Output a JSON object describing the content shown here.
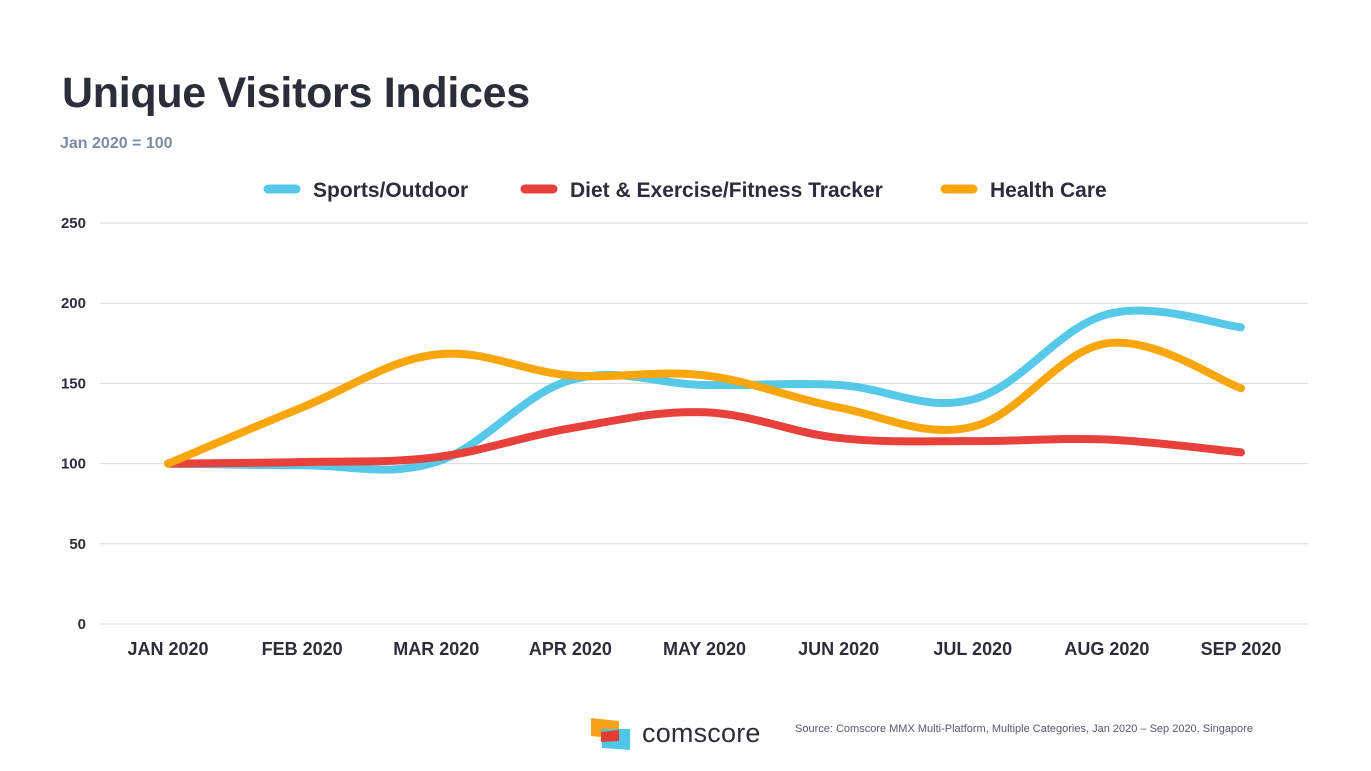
{
  "title": "Unique Visitors Indices",
  "subtitle": "Jan 2020 = 100",
  "footer": {
    "brand": "comscore",
    "logo_icon": "comscore-logo-icon",
    "source": "Source: Comscore MMX Multi-Platform, Multiple Categories, Jan 2020 – Sep 2020, Singapore"
  },
  "colors": {
    "text": "#2b2d3a",
    "subtitle": "#7d8aa3",
    "grid": "#d9d9d9",
    "logo_orange": "#f7a21b",
    "logo_red": "#e33d33",
    "logo_blue": "#4ec6e8"
  },
  "chart_data": {
    "type": "line",
    "categories": [
      "JAN 2020",
      "FEB 2020",
      "MAR 2020",
      "APR 2020",
      "MAY 2020",
      "JUN 2020",
      "JUL 2020",
      "AUG 2020",
      "SEP 2020"
    ],
    "ylim": [
      0,
      250
    ],
    "yticks": [
      0,
      50,
      100,
      150,
      200,
      250
    ],
    "grid": true,
    "legend_position": "top-center",
    "smooth": true,
    "series": [
      {
        "name": "Sports/Outdoor",
        "color": "#56c8e8",
        "values": [
          100,
          99,
          101,
          152,
          149,
          149,
          140,
          193,
          185
        ]
      },
      {
        "name": "Diet & Exercise/Fitness Tracker",
        "color": "#e8403a",
        "values": [
          100,
          101,
          104,
          122,
          132,
          116,
          114,
          115,
          107
        ]
      },
      {
        "name": "Health Care",
        "color": "#f9a50c",
        "values": [
          100,
          135,
          168,
          155,
          155,
          135,
          123,
          175,
          147
        ]
      }
    ]
  }
}
